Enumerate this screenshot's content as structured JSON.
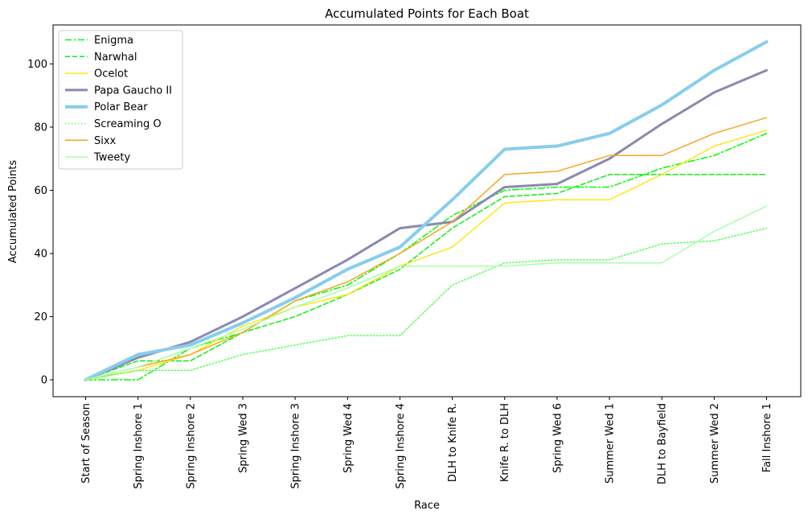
{
  "chart_data": {
    "type": "line",
    "title": "Accumulated Points for Each Boat",
    "xlabel": "Race",
    "ylabel": "Accumulated Points",
    "categories": [
      "Start of Season",
      "Spring Inshore 1",
      "Spring Inshore 2",
      "Spring Wed 3",
      "Spring Inshore 3",
      "Spring Wed 4",
      "Spring Inshore 4",
      "DLH to Knife R.",
      "Knife R. to DLH",
      "Spring Wed 6",
      "Summer Wed 1",
      "DLH to Bayfield",
      "Summer Wed 2",
      "Fall Inshore 1"
    ],
    "ylim": [
      -5.35,
      112.35
    ],
    "yticks": [
      0,
      20,
      40,
      60,
      80,
      100
    ],
    "grid": false,
    "legend_position": "upper-left",
    "series": [
      {
        "name": "Enigma",
        "color": "#00ff00",
        "dash": "dashdot",
        "width": 1.5,
        "values": [
          0,
          0,
          10,
          15,
          25,
          30,
          40,
          52,
          60,
          61,
          61,
          67,
          71,
          78
        ]
      },
      {
        "name": "Narwhal",
        "color": "#11ee11",
        "dash": "dashed",
        "width": 1.5,
        "values": [
          0,
          6,
          6,
          15,
          20,
          27,
          35,
          48,
          58,
          59,
          65,
          65,
          65,
          65
        ]
      },
      {
        "name": "Ocelot",
        "color": "#ffe619",
        "dash": "solid",
        "width": 1.5,
        "values": [
          0,
          3,
          8,
          17,
          23,
          27,
          36,
          42,
          56,
          57,
          57,
          65,
          74,
          79
        ]
      },
      {
        "name": "Papa Gaucho II",
        "color": "#8a8ab0",
        "dash": "solid",
        "width": 3,
        "values": [
          0,
          7,
          12,
          20,
          29,
          38,
          48,
          50,
          61,
          62,
          70,
          81,
          91,
          98
        ]
      },
      {
        "name": "Polar Bear",
        "color": "#87ceeb",
        "dash": "solid",
        "width": 4,
        "values": [
          0,
          8,
          11,
          18,
          26,
          35,
          42,
          57,
          73,
          74,
          78,
          87,
          98,
          107
        ]
      },
      {
        "name": "Screaming O",
        "color": "#55ff55",
        "dash": "dotted",
        "width": 1.5,
        "values": [
          0,
          3,
          3,
          8,
          11,
          14,
          14,
          30,
          37,
          38,
          38,
          43,
          44,
          48
        ]
      },
      {
        "name": "Sixx",
        "color": "#f5a623",
        "dash": "solid",
        "width": 1.5,
        "values": [
          0,
          4,
          8,
          15,
          25,
          31,
          40,
          50,
          65,
          66,
          71,
          71,
          78,
          83
        ]
      },
      {
        "name": "Tweety",
        "color": "#aaffaa",
        "dash": "solid",
        "width": 1.5,
        "values": [
          0,
          4,
          10,
          16,
          23,
          29,
          36,
          36,
          36,
          37,
          37,
          37,
          47,
          55
        ]
      }
    ]
  }
}
